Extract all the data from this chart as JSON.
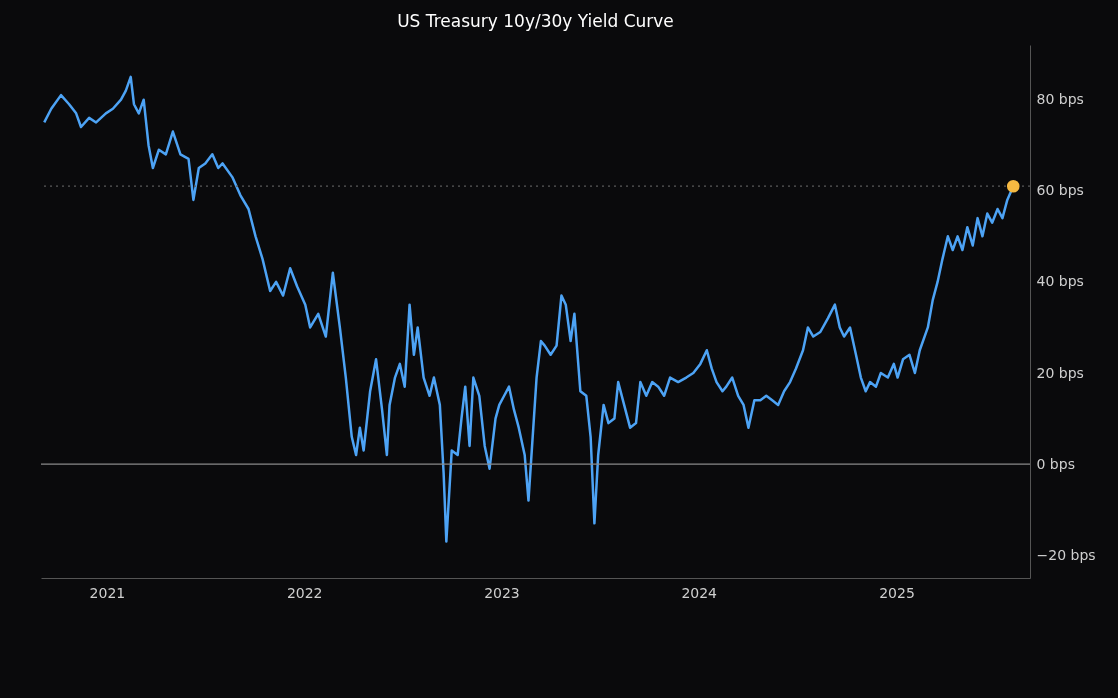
{
  "chart_data": {
    "type": "line",
    "title": "US Treasury 10y/30y Yield Curve",
    "xlim": [
      "2020-09-01",
      "2025-09-05"
    ],
    "xticks": [
      {
        "value": "2021-01-01",
        "label": "2021"
      },
      {
        "value": "2022-01-01",
        "label": "2022"
      },
      {
        "value": "2023-01-01",
        "label": "2023"
      },
      {
        "value": "2024-01-01",
        "label": "2024"
      },
      {
        "value": "2025-01-01",
        "label": "2025"
      }
    ],
    "ylim": [
      -25,
      92
    ],
    "yticks": [
      {
        "value": -20,
        "label": "−20 bps"
      },
      {
        "value": 0,
        "label": "0 bps"
      },
      {
        "value": 20,
        "label": "20 bps"
      },
      {
        "value": 40,
        "label": "40 bps"
      },
      {
        "value": 60,
        "label": "60 bps"
      },
      {
        "value": 80,
        "label": "80 bps"
      }
    ],
    "grid": false,
    "ref_lines": [
      {
        "axis": "y",
        "value": 0,
        "color": "#8a8a8a",
        "line_style": "solid"
      },
      {
        "axis": "y",
        "value": 61,
        "color": "#5a5a5a",
        "line_style": "dotted"
      }
    ],
    "series": [
      {
        "color": "#4da3f5",
        "x": [
          "2020-09-07",
          "2020-09-20",
          "2020-10-08",
          "2020-10-23",
          "2020-11-05",
          "2020-11-14",
          "2020-11-29",
          "2020-12-12",
          "2020-12-30",
          "2021-01-12",
          "2021-01-27",
          "2021-02-05",
          "2021-02-14",
          "2021-02-20",
          "2021-03-01",
          "2021-03-10",
          "2021-03-19",
          "2021-03-27",
          "2021-04-07",
          "2021-04-20",
          "2021-05-03",
          "2021-05-17",
          "2021-06-01",
          "2021-06-10",
          "2021-06-20",
          "2021-07-02",
          "2021-07-15",
          "2021-07-26",
          "2021-08-03",
          "2021-08-21",
          "2021-09-05",
          "2021-09-20",
          "2021-10-03",
          "2021-10-16",
          "2021-10-30",
          "2021-11-10",
          "2021-11-23",
          "2021-12-06",
          "2021-12-19",
          "2022-01-03",
          "2022-01-12",
          "2022-01-27",
          "2022-02-10",
          "2022-02-23",
          "2022-03-08",
          "2022-03-19",
          "2022-03-30",
          "2022-04-07",
          "2022-04-14",
          "2022-04-21",
          "2022-05-03",
          "2022-05-14",
          "2022-05-25",
          "2022-06-03",
          "2022-06-08",
          "2022-06-18",
          "2022-06-27",
          "2022-07-06",
          "2022-07-15",
          "2022-07-23",
          "2022-07-30",
          "2022-08-10",
          "2022-08-21",
          "2022-08-29",
          "2022-09-09",
          "2022-09-16",
          "2022-09-21",
          "2022-10-01",
          "2022-10-12",
          "2022-10-19",
          "2022-10-26",
          "2022-11-03",
          "2022-11-10",
          "2022-11-21",
          "2022-12-01",
          "2022-12-10",
          "2022-12-21",
          "2022-12-28",
          "2023-01-06",
          "2023-01-15",
          "2023-01-24",
          "2023-02-02",
          "2023-02-13",
          "2023-02-20",
          "2023-03-02",
          "2023-03-07",
          "2023-03-15",
          "2023-03-22",
          "2023-04-02",
          "2023-04-13",
          "2023-04-22",
          "2023-04-30",
          "2023-05-09",
          "2023-05-16",
          "2023-05-27",
          "2023-06-07",
          "2023-06-15",
          "2023-06-22",
          "2023-06-29",
          "2023-07-09",
          "2023-07-18",
          "2023-07-29",
          "2023-08-05",
          "2023-08-16",
          "2023-08-27",
          "2023-09-07",
          "2023-09-15",
          "2023-09-26",
          "2023-10-07",
          "2023-10-18",
          "2023-10-29",
          "2023-11-09",
          "2023-11-24",
          "2023-12-09",
          "2023-12-22",
          "2024-01-04",
          "2024-01-16",
          "2024-01-25",
          "2024-02-03",
          "2024-02-14",
          "2024-02-21",
          "2024-03-03",
          "2024-03-14",
          "2024-03-24",
          "2024-04-02",
          "2024-04-13",
          "2024-04-24",
          "2024-05-05",
          "2024-05-16",
          "2024-05-27",
          "2024-06-07",
          "2024-06-18",
          "2024-06-29",
          "2024-07-12",
          "2024-07-21",
          "2024-07-31",
          "2024-08-13",
          "2024-08-27",
          "2024-09-09",
          "2024-09-18",
          "2024-09-26",
          "2024-10-07",
          "2024-10-18",
          "2024-10-27",
          "2024-11-05",
          "2024-11-13",
          "2024-11-24",
          "2024-12-03",
          "2024-12-16",
          "2024-12-27",
          "2025-01-03",
          "2025-01-13",
          "2025-01-25",
          "2025-02-04",
          "2025-02-13",
          "2025-02-28",
          "2025-03-09",
          "2025-03-18",
          "2025-03-27",
          "2025-04-06",
          "2025-04-15",
          "2025-04-24",
          "2025-05-03",
          "2025-05-12",
          "2025-05-22",
          "2025-05-31",
          "2025-06-09",
          "2025-06-18",
          "2025-06-27",
          "2025-07-07",
          "2025-07-16",
          "2025-07-25",
          "2025-08-05"
        ],
        "values": [
          75,
          78,
          81,
          79,
          77,
          74,
          76,
          75,
          77,
          78,
          80,
          82,
          85,
          79,
          77,
          80,
          70,
          65,
          69,
          68,
          73,
          68,
          67,
          58,
          65,
          66,
          68,
          65,
          66,
          63,
          59,
          56,
          50,
          45,
          38,
          40,
          37,
          43,
          39,
          35,
          30,
          33,
          28,
          42,
          30,
          19,
          6,
          2,
          8,
          3,
          16,
          23,
          12,
          2,
          13,
          19,
          22,
          17,
          35,
          24,
          30,
          19,
          15,
          19,
          13,
          -2,
          -17,
          3,
          2,
          10,
          17,
          4,
          19,
          15,
          4,
          -1,
          10,
          13,
          15,
          17,
          12,
          8,
          2,
          -8,
          10,
          19,
          27,
          26,
          24,
          26,
          37,
          35,
          27,
          33,
          16,
          15,
          6,
          -13,
          2,
          13,
          9,
          10,
          18,
          13,
          8,
          9,
          18,
          15,
          18,
          17,
          15,
          19,
          18,
          19,
          20,
          22,
          25,
          21,
          18,
          16,
          17,
          19,
          15,
          13,
          8,
          14,
          14,
          15,
          14,
          13,
          16,
          18,
          21,
          25,
          30,
          28,
          29,
          32,
          35,
          30,
          28,
          30,
          24,
          19,
          16,
          18,
          17,
          20,
          19,
          22,
          19,
          23,
          24,
          20,
          25,
          30,
          36,
          40,
          45,
          50,
          47,
          50,
          47,
          52,
          48,
          54,
          50,
          55,
          53,
          56,
          54,
          58,
          61
        ]
      },
      {
        "type": "scatter",
        "color": "#f5b942",
        "marker": "circle",
        "x": [
          "2025-08-05"
        ],
        "values": [
          61
        ]
      }
    ]
  }
}
